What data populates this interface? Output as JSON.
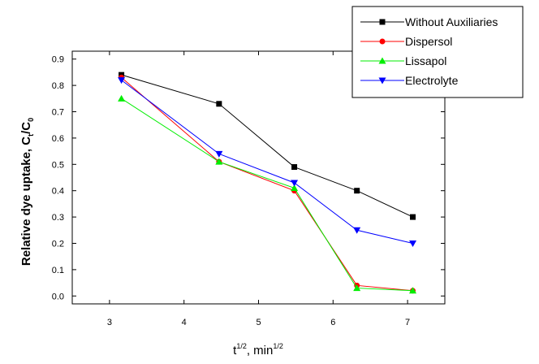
{
  "chart_data": {
    "type": "line",
    "x": [
      3.16,
      4.47,
      5.48,
      6.32,
      7.07
    ],
    "series": [
      {
        "name": "Without Auxiliaries",
        "values": [
          0.84,
          0.73,
          0.49,
          0.4,
          0.3
        ],
        "color": "#000000",
        "marker": "square"
      },
      {
        "name": "Dispersol",
        "values": [
          0.83,
          0.51,
          0.4,
          0.04,
          0.02
        ],
        "color": "#ff0000",
        "marker": "circle"
      },
      {
        "name": "Lissapol",
        "values": [
          0.75,
          0.51,
          0.41,
          0.03,
          0.02
        ],
        "color": "#00ee00",
        "marker": "triangle-up"
      },
      {
        "name": "Electrolyte",
        "values": [
          0.82,
          0.54,
          0.43,
          0.25,
          0.2
        ],
        "color": "#0000ff",
        "marker": "triangle-down"
      }
    ],
    "xlim": [
      2.5,
      7.5
    ],
    "ylim": [
      -0.03,
      0.93
    ],
    "xticks": [
      3,
      4,
      5,
      6,
      7
    ],
    "yticks": [
      0.0,
      0.1,
      0.2,
      0.3,
      0.4,
      0.5,
      0.6,
      0.7,
      0.8,
      0.9
    ],
    "xtick_labels": [
      "3",
      "4",
      "5",
      "6",
      "7"
    ],
    "ytick_labels": [
      "0.0",
      "0.1",
      "0.2",
      "0.3",
      "0.4",
      "0.5",
      "0.6",
      "0.7",
      "0.8",
      "0.9"
    ],
    "xlabel": {
      "main": "t",
      "sup": "1/2",
      "mid": ", min",
      "sup2": "1/2"
    },
    "ylabel": {
      "main": "Relative dye uptake, C",
      "sub": "t",
      "mid": "/C",
      "sub2": "0"
    },
    "legend_position": "top-right",
    "grid": false
  }
}
